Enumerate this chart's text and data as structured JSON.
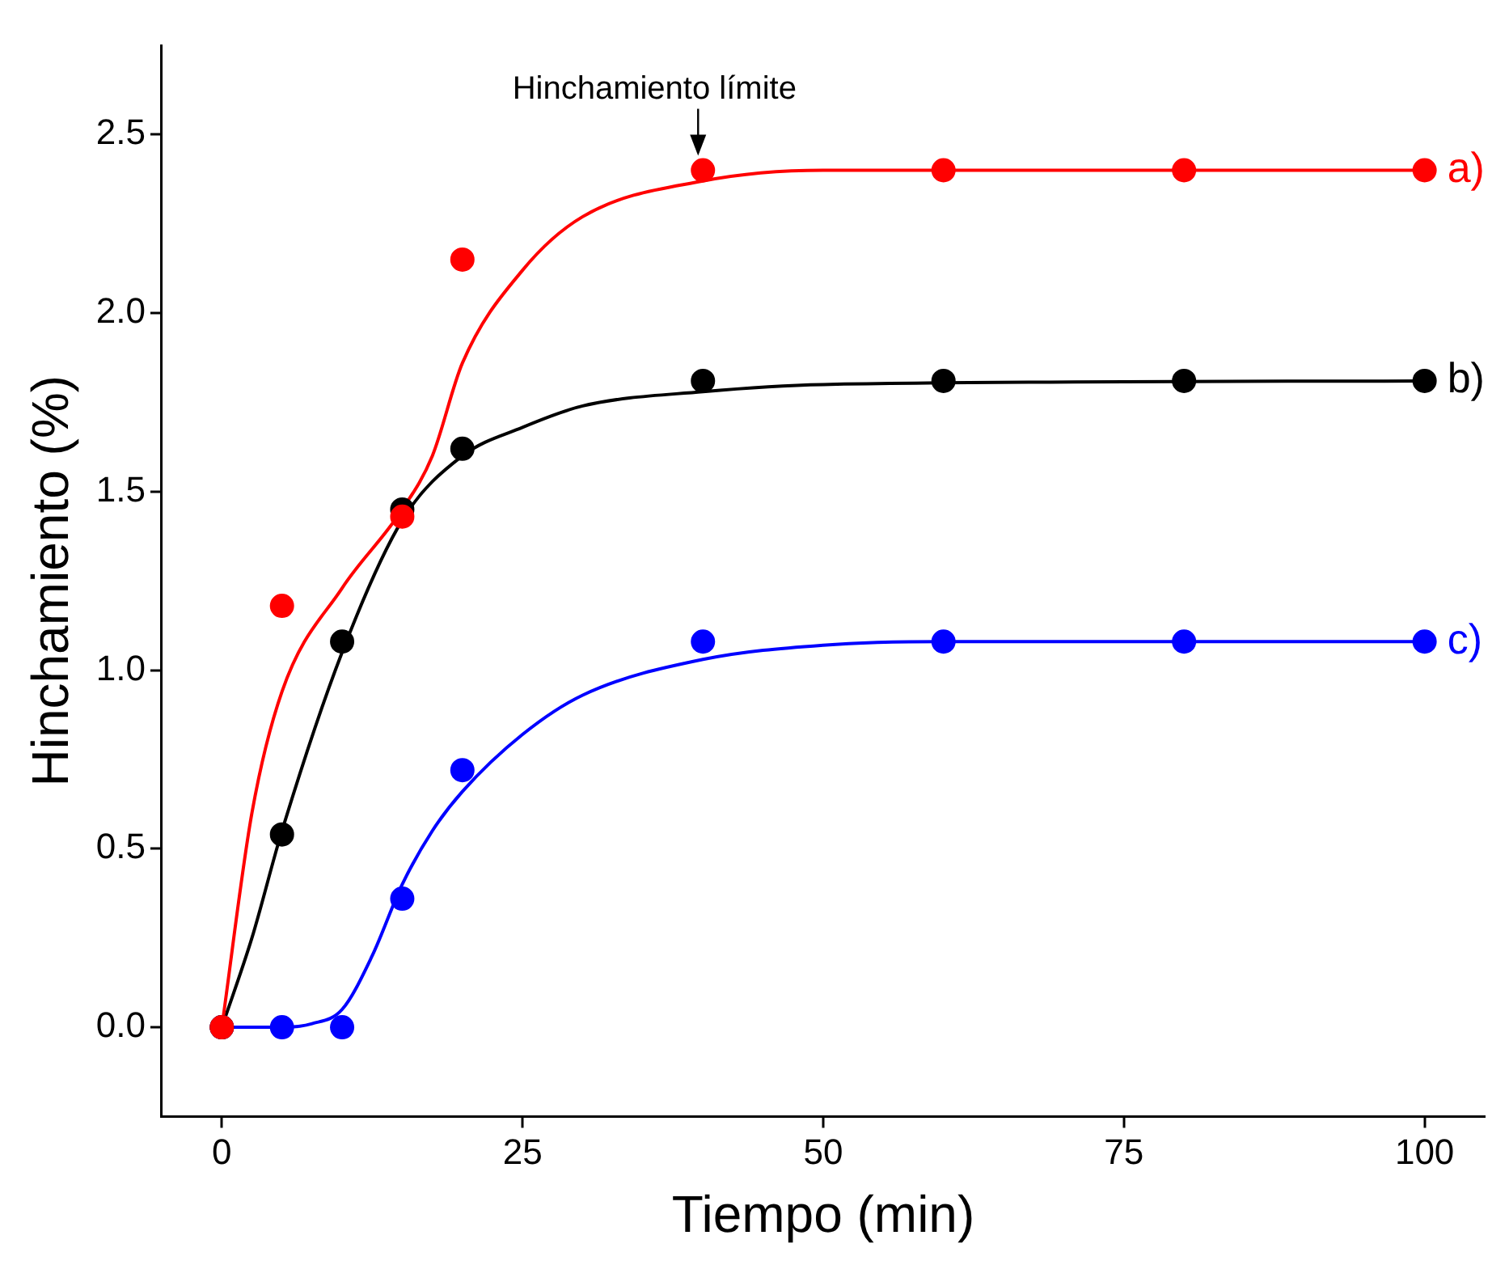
{
  "chart_data": {
    "type": "scatter",
    "xlabel": "Tiempo (min)",
    "ylabel": "Hinchamiento (%)",
    "xlim": [
      -5,
      105
    ],
    "xticks": [
      0,
      25,
      50,
      75,
      100
    ],
    "ylim": [
      -0.25,
      2.75
    ],
    "yticks": [
      {
        "value": 0,
        "label": "0.0"
      },
      0.5,
      {
        "value": 1,
        "label": "1.0"
      },
      1.5,
      {
        "value": 2,
        "label": "2.0"
      },
      2.5
    ],
    "grid": false,
    "legend": false,
    "marker": "circle",
    "annotations": [
      {
        "text": "Hinchamiento límite",
        "x": 40,
        "y": 2.4
      }
    ],
    "series": [
      {
        "name": "a)",
        "color": "#ff0000",
        "x": [
          0,
          5,
          15,
          20,
          40,
          60,
          80,
          100
        ],
        "values": [
          0,
          1.18,
          1.43,
          2.15,
          2.4,
          2.4,
          2.4,
          2.4
        ]
      },
      {
        "name": "b)",
        "color": "#000000",
        "x": [
          0,
          5,
          10,
          15,
          20,
          40,
          60,
          80,
          100
        ],
        "values": [
          0,
          0.54,
          1.08,
          1.45,
          1.62,
          1.81,
          1.81,
          1.81,
          1.81
        ]
      },
      {
        "name": "c)",
        "color": "#0000ff",
        "x": [
          0,
          5,
          10,
          15,
          20,
          40,
          60,
          80,
          100
        ],
        "values": [
          0,
          0,
          0,
          0.36,
          0.72,
          1.08,
          1.08,
          1.08,
          1.08
        ]
      },
      {
        "type": "line",
        "color": "#ff0000",
        "line_style": "solid",
        "marker": "none",
        "x": [
          0,
          2.5,
          5,
          10,
          15,
          17.5,
          20,
          25,
          30,
          40,
          50,
          100
        ],
        "values": [
          0,
          0.6,
          0.94,
          1.23,
          1.45,
          1.6,
          1.86,
          2.12,
          2.27,
          2.37,
          2.4,
          2.4
        ]
      },
      {
        "type": "line",
        "color": "#000000",
        "line_style": "solid",
        "marker": "none",
        "x": [
          0,
          2.5,
          5,
          10,
          15,
          20,
          25,
          30,
          40,
          50,
          100
        ],
        "values": [
          0,
          0.25,
          0.55,
          1.05,
          1.42,
          1.6,
          1.68,
          1.74,
          1.78,
          1.8,
          1.81
        ]
      },
      {
        "type": "line",
        "color": "#0000ff",
        "line_style": "solid",
        "marker": "none",
        "x": [
          0,
          5,
          7.5,
          10,
          12.5,
          15,
          17.5,
          20,
          25,
          30,
          40,
          50,
          60,
          100
        ],
        "values": [
          0,
          0,
          0.01,
          0.05,
          0.2,
          0.4,
          0.55,
          0.66,
          0.82,
          0.93,
          1.03,
          1.07,
          1.08,
          1.08
        ]
      }
    ]
  }
}
